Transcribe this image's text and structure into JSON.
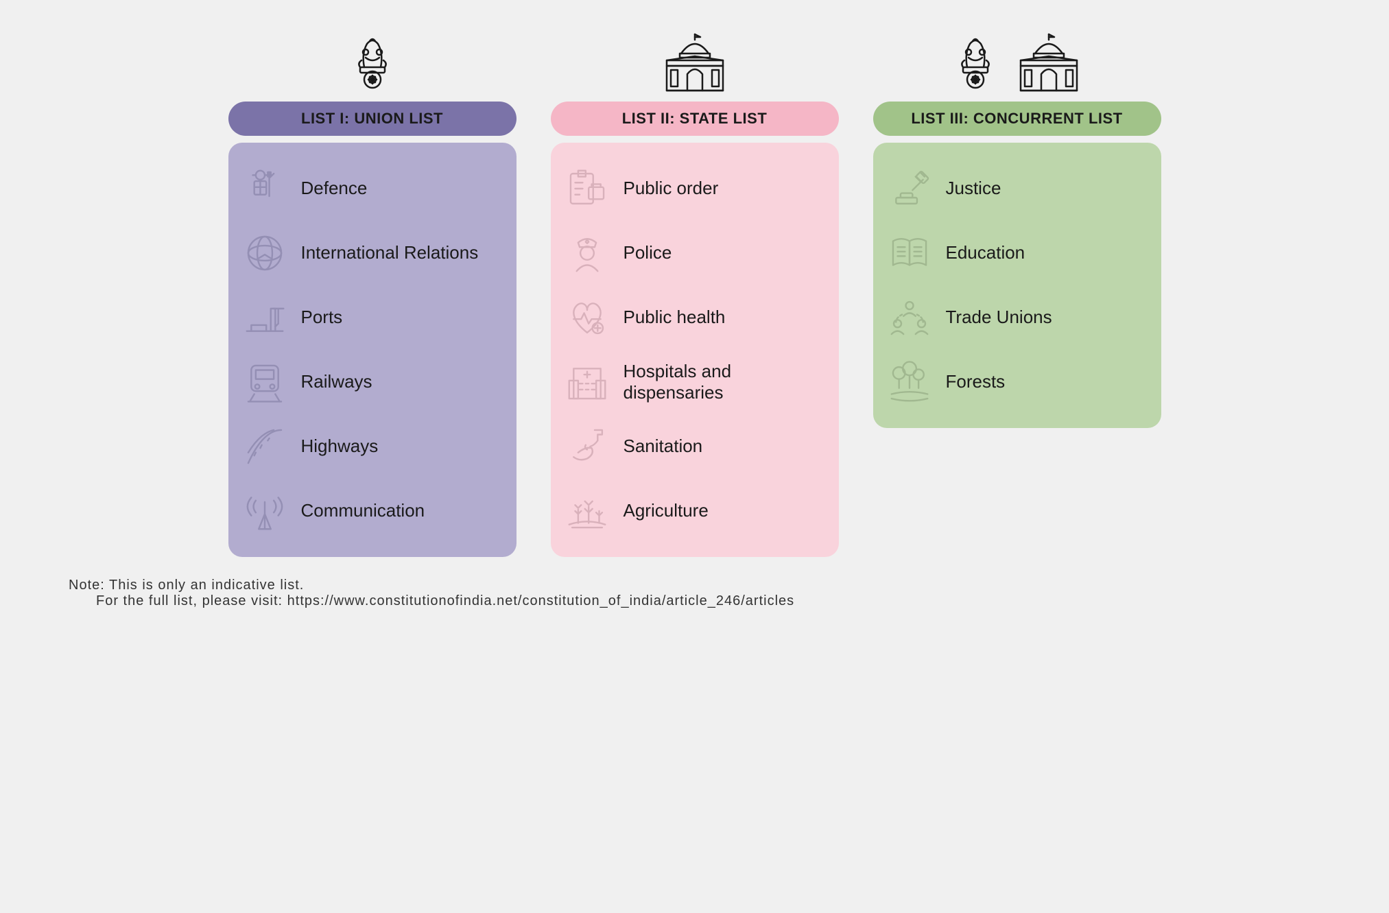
{
  "columns": [
    {
      "id": "union",
      "title": "LIST I: UNION LIST",
      "pill_bg": "#7b73a8",
      "panel_bg": "#b2accf",
      "icon_stroke": "#4a4670",
      "header_icons": [
        "emblem"
      ],
      "items": [
        {
          "label": "Defence",
          "icon": "defence"
        },
        {
          "label": "International Relations",
          "icon": "globe"
        },
        {
          "label": "Ports",
          "icon": "port"
        },
        {
          "label": "Railways",
          "icon": "rail"
        },
        {
          "label": "Highways",
          "icon": "road"
        },
        {
          "label": "Communication",
          "icon": "tower"
        }
      ]
    },
    {
      "id": "state",
      "title": "LIST II: STATE LIST",
      "pill_bg": "#f5b6c6",
      "panel_bg": "#f9d3dc",
      "icon_stroke": "#8a5d6a",
      "header_icons": [
        "building"
      ],
      "items": [
        {
          "label": "Public order",
          "icon": "order"
        },
        {
          "label": "Police",
          "icon": "police"
        },
        {
          "label": "Public health",
          "icon": "health"
        },
        {
          "label": "Hospitals and dispensaries",
          "icon": "hospital"
        },
        {
          "label": "Sanitation",
          "icon": "sanitation"
        },
        {
          "label": "Agriculture",
          "icon": "agri"
        }
      ]
    },
    {
      "id": "concurrent",
      "title": "LIST III: CONCURRENT LIST",
      "pill_bg": "#a1c389",
      "panel_bg": "#bdd6ab",
      "icon_stroke": "#5a6e4d",
      "header_icons": [
        "emblem",
        "building"
      ],
      "items": [
        {
          "label": "Justice",
          "icon": "justice"
        },
        {
          "label": "Education",
          "icon": "book"
        },
        {
          "label": "Trade Unions",
          "icon": "union"
        },
        {
          "label": "Forests",
          "icon": "forest"
        }
      ]
    }
  ],
  "note_line1": "Note: This is only an indicative list.",
  "note_line2": "For the full list, please visit: https://www.constitutionofindia.net/constitution_of_india/article_246/articles",
  "styling": {
    "body_bg": "#f0f0f0",
    "text_color": "#1a1a1a",
    "note_color": "#333",
    "pill_radius": 30,
    "panel_radius": 20,
    "title_fontsize": 22,
    "item_fontsize": 26,
    "note_fontsize": 20,
    "icon_opacity": 0.28
  }
}
